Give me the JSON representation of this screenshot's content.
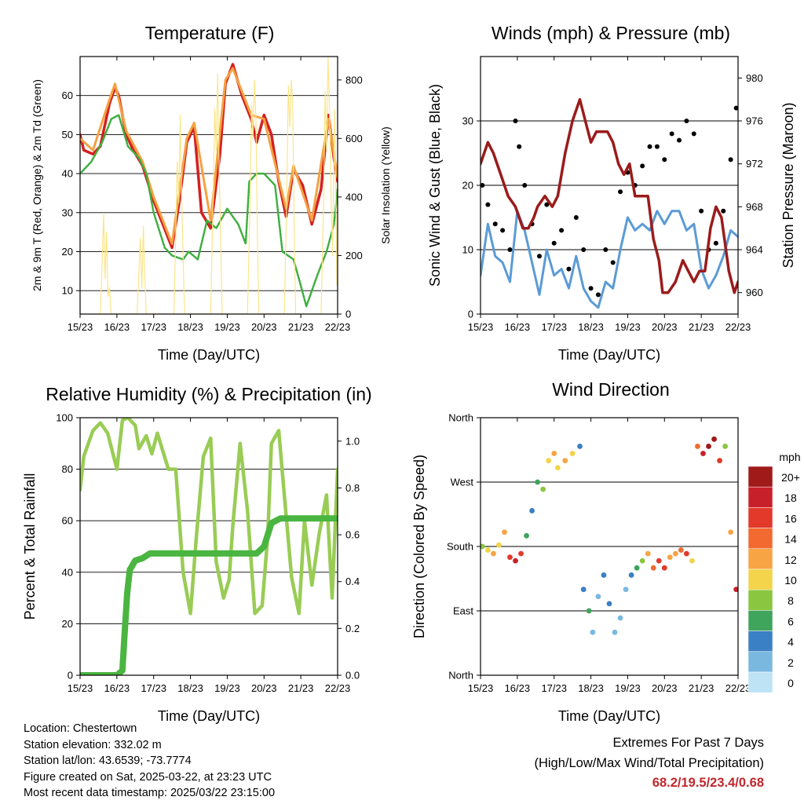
{
  "colors": {
    "red": "#d42020",
    "orange": "#f5a142",
    "green": "#3fae3f",
    "yellow": "#fce588",
    "blue": "#5b9bd5",
    "black": "#000000",
    "maroon": "#9b1b1b",
    "rh": "#99cc55",
    "precip": "#4ab540",
    "extremes": "#c0272d"
  },
  "time_ticks": [
    "15/23",
    "16/23",
    "17/23",
    "18/23",
    "19/23",
    "20/23",
    "21/23",
    "22/23"
  ],
  "chart_data": [
    {
      "type": "line",
      "title": "Temperature (F)",
      "xlabel": "Time (Day/UTC)",
      "ylabel": "2m & 9m T (Red, Orange) & 2m Td (Green)",
      "y2label": "Solar Insolation (Yellow)",
      "ylim": [
        4,
        70
      ],
      "y2lim": [
        0,
        880
      ],
      "yticks": [
        10,
        20,
        30,
        40,
        50,
        60
      ],
      "y2ticks": [
        0,
        200,
        400,
        600,
        800
      ],
      "xlim": [
        0,
        7
      ],
      "series": [
        {
          "name": "2m T",
          "color": "#d42020",
          "axis": "y",
          "x": [
            0,
            0.1,
            0.35,
            0.55,
            0.8,
            0.95,
            1.05,
            1.25,
            1.45,
            1.7,
            2.0,
            2.5,
            2.7,
            2.9,
            3.1,
            3.3,
            3.55,
            3.8,
            3.95,
            4.15,
            4.4,
            4.65,
            4.8,
            5.0,
            5.2,
            5.4,
            5.6,
            5.8,
            6.05,
            6.3,
            6.55,
            6.75,
            6.9,
            7.0
          ],
          "y": [
            50,
            46,
            45,
            47,
            58,
            62,
            60,
            50,
            46,
            42,
            33,
            21,
            33,
            48,
            52,
            30,
            26,
            45,
            63,
            68,
            60,
            54,
            48,
            55,
            50,
            38,
            29,
            41,
            37,
            27,
            36,
            55,
            44,
            38
          ]
        },
        {
          "name": "9m T",
          "color": "#f5a142",
          "axis": "y",
          "x": [
            0,
            0.35,
            0.8,
            0.95,
            1.25,
            1.7,
            2.0,
            2.5,
            2.9,
            3.1,
            3.55,
            3.95,
            4.15,
            4.65,
            5.0,
            5.6,
            5.8,
            6.3,
            6.75,
            7.0
          ],
          "y": [
            49,
            46,
            59,
            63,
            51,
            43,
            34,
            22,
            49,
            53,
            28,
            64,
            67,
            55,
            54,
            31,
            42,
            28,
            54,
            39
          ]
        },
        {
          "name": "2m Td",
          "color": "#3fae3f",
          "axis": "y",
          "x": [
            0,
            0.3,
            0.6,
            0.85,
            1.05,
            1.3,
            1.6,
            1.8,
            2.0,
            2.3,
            2.5,
            2.8,
            2.95,
            3.2,
            3.45,
            3.7,
            4.0,
            4.3,
            4.5,
            4.6,
            4.8,
            5.0,
            5.3,
            5.5,
            5.8,
            5.95,
            6.15,
            6.45,
            6.7,
            6.9,
            7.0
          ],
          "y": [
            40,
            43,
            48,
            54,
            55,
            47,
            44,
            40,
            30,
            21,
            19,
            18,
            20,
            18,
            28,
            26,
            31,
            27,
            22,
            38,
            40,
            40,
            37,
            20,
            18,
            13,
            6,
            14,
            20,
            27,
            36
          ]
        },
        {
          "name": "Solar Insolation",
          "color": "#fce588",
          "axis": "y2",
          "x": [
            0.55,
            0.6,
            0.64,
            0.68,
            0.72,
            0.76,
            0.8,
            0.84,
            1.55,
            1.6,
            1.64,
            1.68,
            1.72,
            1.76,
            1.8,
            2.55,
            2.6,
            2.64,
            2.68,
            2.72,
            2.76,
            2.8,
            2.84,
            3.55,
            3.62,
            3.66,
            3.7,
            3.74,
            3.78,
            3.82,
            3.86,
            4.55,
            4.62,
            4.66,
            4.7,
            4.74,
            4.78,
            4.82,
            4.86,
            5.55,
            5.62,
            5.66,
            5.7,
            5.74,
            5.78,
            5.82,
            5.86,
            6.55,
            6.62,
            6.66,
            6.7,
            6.74,
            6.78,
            6.82,
            6.86,
            6.92,
            6.98
          ],
          "y": [
            0,
            180,
            340,
            120,
            280,
            60,
            90,
            0,
            0,
            150,
            260,
            90,
            300,
            120,
            0,
            0,
            260,
            520,
            380,
            680,
            400,
            200,
            0,
            0,
            420,
            700,
            560,
            820,
            500,
            260,
            0,
            0,
            380,
            720,
            600,
            800,
            660,
            260,
            0,
            0,
            420,
            780,
            640,
            800,
            720,
            280,
            0,
            0,
            380,
            760,
            560,
            880,
            700,
            420,
            200,
            700,
            100
          ]
        }
      ]
    },
    {
      "type": "scatter",
      "title": "Winds (mph) & Pressure (mb)",
      "xlabel": "Time (Day/UTC)",
      "ylabel": "Sonic Wind & Gust (Blue, Black)",
      "y2label": "Station Pressure (Maroon)",
      "ylim": [
        0,
        40
      ],
      "y2lim": [
        958,
        982
      ],
      "yticks": [
        0,
        10,
        20,
        30
      ],
      "y2ticks": [
        960,
        964,
        968,
        972,
        976,
        980
      ],
      "xlim": [
        0,
        7
      ],
      "series": [
        {
          "name": "Sonic Wind",
          "color": "#5b9bd5",
          "axis": "y",
          "x": [
            0,
            0.2,
            0.4,
            0.6,
            0.8,
            1.0,
            1.2,
            1.4,
            1.6,
            1.8,
            2.0,
            2.2,
            2.4,
            2.6,
            2.8,
            3.0,
            3.2,
            3.4,
            3.6,
            3.8,
            4.0,
            4.2,
            4.4,
            4.6,
            4.8,
            5.0,
            5.2,
            5.4,
            5.6,
            5.8,
            6.0,
            6.2,
            6.4,
            6.6,
            6.8,
            7.0
          ],
          "y": [
            6,
            14,
            9,
            8,
            5,
            16,
            13,
            8,
            3,
            10,
            6,
            7,
            4,
            9,
            4,
            2,
            1,
            5,
            4,
            10,
            15,
            13,
            14,
            13,
            16,
            14,
            16,
            16,
            13,
            14,
            7,
            4,
            6,
            9,
            13,
            12
          ]
        },
        {
          "name": "Gust",
          "color": "#000000",
          "axis": "y",
          "x": [
            0.05,
            0.2,
            0.4,
            0.6,
            0.8,
            0.95,
            1.05,
            1.2,
            1.4,
            1.6,
            1.8,
            2.0,
            2.2,
            2.4,
            2.6,
            2.8,
            3.0,
            3.2,
            3.4,
            3.6,
            3.8,
            4.0,
            4.2,
            4.4,
            4.6,
            4.8,
            5.0,
            5.2,
            5.4,
            5.6,
            5.8,
            6.0,
            6.2,
            6.4,
            6.6,
            6.8,
            6.95
          ],
          "y": [
            20,
            17,
            14,
            13,
            10,
            30,
            26,
            20,
            14,
            9,
            17,
            11,
            13,
            7,
            15,
            10,
            4,
            3,
            10,
            8,
            19,
            22,
            20,
            23,
            26,
            26,
            24,
            28,
            27,
            30,
            28,
            16,
            10,
            11,
            16,
            24,
            32
          ]
        },
        {
          "name": "Station Pressure",
          "color": "#9b1b1b",
          "axis": "y2",
          "x": [
            0,
            0.2,
            0.35,
            0.55,
            0.75,
            0.95,
            1.15,
            1.3,
            1.45,
            1.55,
            1.75,
            1.95,
            2.1,
            2.3,
            2.5,
            2.7,
            2.85,
            3.0,
            3.15,
            3.3,
            3.45,
            3.6,
            3.75,
            3.9,
            4.05,
            4.2,
            4.35,
            4.55,
            4.7,
            4.85,
            4.95,
            5.1,
            5.3,
            5.5,
            5.65,
            5.8,
            5.95,
            6.1,
            6.25,
            6.4,
            6.55,
            6.75,
            6.9,
            7.0
          ],
          "y": [
            972,
            974,
            973,
            971,
            969,
            968,
            966,
            966,
            967,
            968,
            969,
            968,
            969,
            973,
            976,
            978,
            976,
            974,
            975,
            975,
            975,
            974,
            972,
            971,
            972,
            969,
            969,
            969,
            965,
            963,
            960,
            960,
            961,
            963,
            962,
            961,
            962,
            962,
            966,
            968,
            967,
            962,
            960,
            961
          ]
        }
      ]
    },
    {
      "type": "line",
      "title": "Relative Humidity (%) & Precipitation (in)",
      "xlabel": "Time (Day/UTC)",
      "ylabel": "Percent & Total Rainfall",
      "ylim": [
        0,
        100
      ],
      "y2lim": [
        0,
        1.1
      ],
      "yticks": [
        0,
        20,
        40,
        60,
        80,
        100
      ],
      "y2ticks": [
        "0.0",
        "0.2",
        "0.4",
        "0.6",
        "0.8",
        "1.0"
      ],
      "xlim": [
        0,
        7
      ],
      "series": [
        {
          "name": "Relative Humidity",
          "color": "#99cc55",
          "axis": "y",
          "x": [
            0,
            0.1,
            0.35,
            0.55,
            0.75,
            1.0,
            1.15,
            1.3,
            1.5,
            1.6,
            1.8,
            1.95,
            2.1,
            2.4,
            2.6,
            2.8,
            3.0,
            3.15,
            3.35,
            3.55,
            3.7,
            3.9,
            4.05,
            4.15,
            4.35,
            4.55,
            4.75,
            4.95,
            5.1,
            5.2,
            5.4,
            5.55,
            5.75,
            5.95,
            6.1,
            6.3,
            6.5,
            6.7,
            6.85,
            7.0
          ],
          "y": [
            72,
            85,
            95,
            98,
            94,
            80,
            99,
            100,
            97,
            88,
            93,
            86,
            94,
            80,
            80,
            40,
            24,
            52,
            85,
            92,
            44,
            30,
            37,
            58,
            90,
            64,
            24,
            27,
            54,
            90,
            95,
            70,
            38,
            24,
            60,
            35,
            55,
            70,
            30,
            80
          ]
        },
        {
          "name": "Total Precipitation",
          "color": "#4ab540",
          "axis": "y2",
          "x": [
            0,
            0.5,
            1.0,
            1.15,
            1.2,
            1.28,
            1.35,
            1.5,
            1.7,
            1.9,
            2.3,
            3.0,
            4.0,
            4.6,
            4.8,
            5.0,
            5.2,
            5.45,
            6.0,
            7.0
          ],
          "y": [
            0,
            0,
            0,
            0.02,
            0.15,
            0.35,
            0.45,
            0.49,
            0.5,
            0.52,
            0.52,
            0.52,
            0.52,
            0.52,
            0.52,
            0.55,
            0.65,
            0.67,
            0.67,
            0.67
          ]
        }
      ]
    },
    {
      "type": "scatter",
      "title": "Wind Direction",
      "xlabel": "Time (Day/UTC)",
      "ylabel": "Direction (Colored By Speed)",
      "yticks": [
        "North",
        "East",
        "South",
        "West",
        "North"
      ],
      "ylim": [
        0,
        360
      ],
      "xlim": [
        0,
        7
      ],
      "colorbar": {
        "unit": "mph",
        "labels": [
          "20+",
          "18",
          "16",
          "14",
          "12",
          "10",
          "8",
          "6",
          "4",
          "2",
          "0"
        ],
        "colors": [
          "#a01a1a",
          "#c8202a",
          "#e2392a",
          "#f26a30",
          "#f7a444",
          "#f3d44a",
          "#8bc640",
          "#3fa45c",
          "#3a80c4",
          "#7ab8e0",
          "#bde3f5"
        ]
      },
      "series": [
        {
          "name": "Wind Direction",
          "x": [
            0.05,
            0.2,
            0.35,
            0.5,
            0.65,
            0.8,
            0.95,
            1.1,
            1.25,
            1.4,
            1.55,
            1.7,
            1.85,
            2.0,
            2.1,
            2.3,
            2.5,
            2.7,
            2.8,
            2.95,
            3.05,
            3.2,
            3.35,
            3.5,
            3.65,
            3.8,
            3.95,
            4.1,
            4.25,
            4.4,
            4.55,
            4.7,
            4.85,
            5.0,
            5.15,
            5.3,
            5.45,
            5.6,
            5.75,
            5.9,
            6.05,
            6.2,
            6.35,
            6.5,
            6.65,
            6.8,
            6.95
          ],
          "y": [
            180,
            175,
            170,
            182,
            200,
            165,
            160,
            170,
            195,
            230,
            270,
            260,
            300,
            310,
            290,
            300,
            310,
            320,
            120,
            90,
            60,
            110,
            140,
            100,
            60,
            80,
            120,
            140,
            150,
            160,
            170,
            150,
            160,
            150,
            165,
            170,
            175,
            170,
            160,
            320,
            310,
            320,
            330,
            300,
            320,
            200,
            120
          ],
          "speed": [
            8,
            10,
            11,
            9,
            12,
            16,
            17,
            15,
            6,
            4,
            5,
            8,
            10,
            12,
            9,
            11,
            10,
            4,
            3,
            5,
            2,
            1,
            4,
            3,
            1,
            2,
            1,
            4,
            5,
            8,
            12,
            14,
            16,
            15,
            11,
            12,
            14,
            16,
            10,
            14,
            18,
            20,
            19,
            16,
            8,
            12,
            18
          ]
        }
      ]
    }
  ],
  "info": {
    "location": "Location: Chestertown",
    "elevation": "Station elevation: 332.02 m",
    "latlon": "Station lat/lon: 43.6539; -73.7774",
    "created": "Figure created on Sat, 2025-03-22, at 23:23 UTC",
    "recent": "Most recent data timestamp: 2025/03/22 23:15:00"
  },
  "extremes": {
    "title": "Extremes For Past 7 Days",
    "subtitle": "(High/Low/Max Wind/Total Precipitation)",
    "values": "68.2/19.5/23.4/0.68"
  }
}
